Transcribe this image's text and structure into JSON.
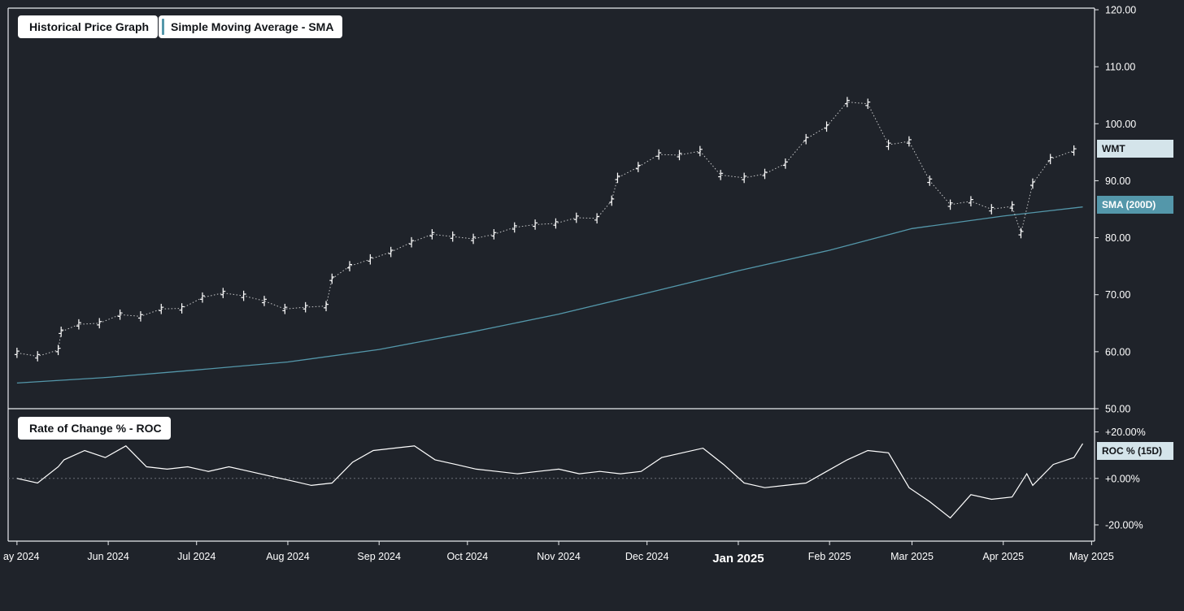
{
  "legends": {
    "price": "Historical Price Graph",
    "sma": "Simple Moving Average - SMA",
    "roc": "Rate of Change % - ROC"
  },
  "tags": {
    "wmt": "WMT",
    "sma": "SMA (200D)",
    "roc": "ROC % (15D)"
  },
  "colors": {
    "background": "#1f232a",
    "price_bars": "#ffffff",
    "sma_line": "#5497aa",
    "roc_line": "#ffffff",
    "zero_line": "#6b7078"
  },
  "chart_data": [
    {
      "type": "line",
      "title": "",
      "subtitle": "Historical Price Graph",
      "xlabel": "",
      "ylabel": "",
      "price_ticks": [
        "120.00",
        "110.00",
        "100.00",
        "90.00",
        "80.00",
        "70.00",
        "60.00",
        "50.00"
      ],
      "ylim": [
        50,
        120
      ],
      "x_ticks": [
        "ay 2024",
        "Jun 2024",
        "Jul 2024",
        "Aug 2024",
        "Sep 2024",
        "Oct 2024",
        "Nov 2024",
        "Dec 2024",
        "Jan 2025",
        "Feb 2025",
        "Mar 2025",
        "Apr 2025",
        "May 2025"
      ],
      "series": [
        {
          "name": "WMT",
          "style": "ohlc-bars",
          "x": [
            "2024-05-01",
            "2024-05-08",
            "2024-05-15",
            "2024-05-16",
            "2024-05-22",
            "2024-05-29",
            "2024-06-05",
            "2024-06-12",
            "2024-06-19",
            "2024-06-26",
            "2024-07-03",
            "2024-07-10",
            "2024-07-17",
            "2024-07-24",
            "2024-07-31",
            "2024-08-07",
            "2024-08-14",
            "2024-08-16",
            "2024-08-22",
            "2024-08-29",
            "2024-09-05",
            "2024-09-12",
            "2024-09-19",
            "2024-09-26",
            "2024-10-03",
            "2024-10-10",
            "2024-10-17",
            "2024-10-24",
            "2024-10-31",
            "2024-11-07",
            "2024-11-14",
            "2024-11-19",
            "2024-11-21",
            "2024-11-28",
            "2024-12-05",
            "2024-12-12",
            "2024-12-19",
            "2024-12-26",
            "2025-01-03",
            "2025-01-10",
            "2025-01-17",
            "2025-01-24",
            "2025-01-31",
            "2025-02-07",
            "2025-02-14",
            "2025-02-21",
            "2025-02-28",
            "2025-03-07",
            "2025-03-14",
            "2025-03-21",
            "2025-03-28",
            "2025-04-04",
            "2025-04-07",
            "2025-04-11",
            "2025-04-17",
            "2025-04-25"
          ],
          "values": [
            59.8,
            59.2,
            60.3,
            63.5,
            64.8,
            65.0,
            66.5,
            66.2,
            67.5,
            67.6,
            69.5,
            70.3,
            69.8,
            68.9,
            67.5,
            67.8,
            68.0,
            72.8,
            75.0,
            76.2,
            77.5,
            79.2,
            80.6,
            80.2,
            79.8,
            80.6,
            81.8,
            82.3,
            82.5,
            83.5,
            83.4,
            86.5,
            90.5,
            92.4,
            94.6,
            94.5,
            95.2,
            91.0,
            90.5,
            91.2,
            93.0,
            97.3,
            99.5,
            103.8,
            103.5,
            96.3,
            96.9,
            90.0,
            85.8,
            86.4,
            85.0,
            85.5,
            80.8,
            89.5,
            93.8,
            95.3
          ]
        },
        {
          "name": "SMA (200D)",
          "style": "line",
          "x": [
            "2024-05-01",
            "2024-06-01",
            "2024-07-01",
            "2024-08-01",
            "2024-09-01",
            "2024-10-01",
            "2024-11-01",
            "2024-12-01",
            "2025-01-01",
            "2025-02-01",
            "2025-03-01",
            "2025-04-01",
            "2025-04-28"
          ],
          "values": [
            54.5,
            55.5,
            56.8,
            58.2,
            60.4,
            63.3,
            66.6,
            70.3,
            74.2,
            77.8,
            81.6,
            83.8,
            85.4
          ]
        }
      ]
    },
    {
      "type": "line",
      "title": "",
      "subtitle": "Rate of Change % - ROC",
      "xlabel": "",
      "ylabel": "",
      "roc_ticks": [
        "+20.00%",
        "+0.00%",
        "-20.00%"
      ],
      "ylim": [
        -27,
        30
      ],
      "series": [
        {
          "name": "ROC % (15D)",
          "x": [
            "2024-05-01",
            "2024-05-08",
            "2024-05-15",
            "2024-05-17",
            "2024-05-24",
            "2024-05-31",
            "2024-06-07",
            "2024-06-14",
            "2024-06-21",
            "2024-06-28",
            "2024-07-05",
            "2024-07-12",
            "2024-07-19",
            "2024-07-26",
            "2024-08-02",
            "2024-08-09",
            "2024-08-16",
            "2024-08-23",
            "2024-08-30",
            "2024-09-06",
            "2024-09-13",
            "2024-09-20",
            "2024-09-27",
            "2024-10-04",
            "2024-10-11",
            "2024-10-18",
            "2024-10-25",
            "2024-11-01",
            "2024-11-08",
            "2024-11-15",
            "2024-11-22",
            "2024-11-29",
            "2024-12-06",
            "2024-12-13",
            "2024-12-20",
            "2024-12-27",
            "2025-01-03",
            "2025-01-10",
            "2025-01-17",
            "2025-01-24",
            "2025-01-31",
            "2025-02-07",
            "2025-02-14",
            "2025-02-21",
            "2025-02-28",
            "2025-03-07",
            "2025-03-14",
            "2025-03-21",
            "2025-03-28",
            "2025-04-04",
            "2025-04-09",
            "2025-04-11",
            "2025-04-18",
            "2025-04-25",
            "2025-04-28"
          ],
          "values": [
            0,
            -2,
            5,
            8,
            12,
            9,
            14,
            5,
            4,
            5,
            3,
            5,
            3,
            1,
            -1,
            -3,
            -2,
            7,
            12,
            13,
            14,
            8,
            6,
            4,
            3,
            2,
            3,
            4,
            2,
            3,
            2,
            3,
            9,
            11,
            13,
            6,
            -2,
            -4,
            -3,
            -2,
            3,
            8,
            12,
            11,
            -4,
            -10,
            -17,
            -7,
            -9,
            -8,
            2,
            -3,
            6,
            9,
            15
          ]
        }
      ]
    }
  ]
}
